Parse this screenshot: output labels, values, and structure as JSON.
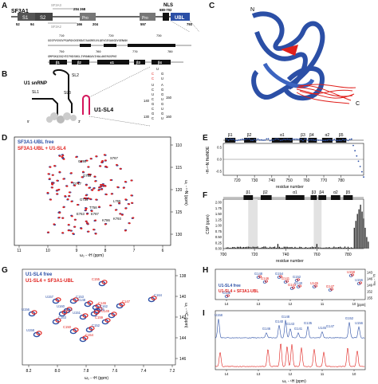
{
  "panels": {
    "A": "A",
    "B": "B",
    "C": "C",
    "D": "D",
    "E": "E",
    "F": "F",
    "G": "G",
    "H": "H",
    "I": "I"
  },
  "panelA": {
    "protein": "SF3A1",
    "sf3a3": "SF3A3",
    "sf3a2": "SF3A2",
    "range": "254 268",
    "nls": "NLS",
    "nlsRange": "680-702",
    "domains": [
      "S1",
      "S2",
      "Pro",
      "Pro",
      "UBL"
    ],
    "ticks": [
      "52",
      "94",
      "166",
      "204",
      "",
      "",
      "557",
      "",
      "",
      "793"
    ],
    "seq1": "GGSPVSVGVPSAPQVOSEKDATAAGREUVLQEVGESAUGDVGENAN",
    "seq1nums": [
      "710",
      "720",
      "730"
    ],
    "seq2": "GMPGKQIGQYEIFKDSNSLIYMANGAVIHALAKERGSPKE",
    "seq2nums": [
      "750",
      "760",
      "770",
      "780"
    ],
    "ss": [
      "β1",
      "β2",
      "α1",
      "β3",
      "β4",
      "α2",
      "β5"
    ]
  },
  "panelB": {
    "complex": "U1 snRNP",
    "sl1": "SL1",
    "sl2": "SL2",
    "sl3": "SL3",
    "sl4": "U1-SL4",
    "five": "5'",
    "three": "3'",
    "nums": [
      "130",
      "140",
      "150",
      "160"
    ],
    "stemLeft": [
      "U",
      "C",
      "U",
      "C",
      "G",
      "C",
      "G",
      "C"
    ],
    "stemRight": [
      "A",
      "G",
      "G",
      "U",
      "G",
      "U",
      "G",
      "U"
    ],
    "loop": [
      "U",
      "C",
      "G",
      "C",
      "U"
    ]
  },
  "panelC": {
    "n": "N",
    "c": "C"
  },
  "panelD": {
    "legend": [
      "SF3A1-UBL free",
      "SF3A1-UBL + U1-SL4"
    ],
    "xlabel": "ω₂ - ¹H (ppm)",
    "ylabel": "ω₁ - ¹⁵N (ppm)",
    "xticks": [
      "11",
      "10",
      "9",
      "8",
      "7",
      "6"
    ],
    "yticks": [
      "110",
      "115",
      "120",
      "125",
      "130"
    ],
    "labels": [
      "S767",
      "G790",
      "G789",
      "D717",
      "G734",
      "T758",
      "E763",
      "K786",
      "E787",
      "K793",
      "L765"
    ]
  },
  "panelE": {
    "ylabel": "¹H-¹⁵N HetNOE",
    "xlabel": "residue number",
    "yticks": [
      "0.5",
      "0.0",
      "-0.5"
    ],
    "xticks": [
      "720",
      "730",
      "740",
      "750",
      "760",
      "770",
      "780"
    ]
  },
  "panelF": {
    "ylabel": "CSP (ppm)",
    "xlabel": "residue number",
    "yticks": [
      "2.00",
      "1.75",
      "1.50",
      "1.25",
      "1.00",
      "0.75",
      "0.50",
      "0.25",
      "0.00"
    ],
    "xticks": [
      "700",
      "720",
      "740",
      "760",
      "780"
    ]
  },
  "panelG": {
    "legend": [
      "U1-SL4 free",
      "U1-SL4 + SF3A1-UBL"
    ],
    "xlabel": "ω₂ - ¹H (ppm)",
    "ylabel": "ω₁ - ¹³C (ppm)",
    "xticks": [
      "8.2",
      "8.0",
      "7.8",
      "7.6",
      "7.4",
      "7.2"
    ],
    "yticks": [
      "138",
      "140",
      "142",
      "144",
      "146"
    ],
    "labels": [
      "C155",
      "C164",
      "U157",
      "C147",
      "U156",
      "C153",
      "U149",
      "C162",
      "U151",
      "C146",
      "G148",
      "U145",
      "C159",
      "C152",
      "U158",
      "C154",
      "U160",
      "U161",
      "C150",
      "C163"
    ]
  },
  "panelH": {
    "legend": [
      "U1-SL4 free",
      "U1-SL4 + SF3A1-UBL"
    ],
    "xticks": [
      "14",
      "13",
      "12",
      "11",
      "10"
    ],
    "xunit": "[ppm]",
    "yticks": [
      "143",
      "146",
      "149",
      "152",
      "155"
    ],
    "ylabel": "ω₁ - ¹⁵N",
    "labels": [
      "G148",
      "G146",
      "G154",
      "G141",
      "G152",
      "U158",
      "U156",
      "G143",
      "G140",
      "U145",
      "G135",
      "G147"
    ]
  },
  "panelI": {
    "xticks": [
      "14",
      "13",
      "12",
      "11",
      "10"
    ],
    "xlabel": "ω₁ - ¹H (ppm)",
    "labels": [
      "U158",
      "G146",
      "G140",
      "G148",
      "G143",
      "G141",
      "G135",
      "G152",
      "U156",
      "U145",
      "G147"
    ]
  },
  "colors": {
    "blue": "#2b4fa6",
    "red": "#e0201c",
    "dark": "#222222"
  }
}
